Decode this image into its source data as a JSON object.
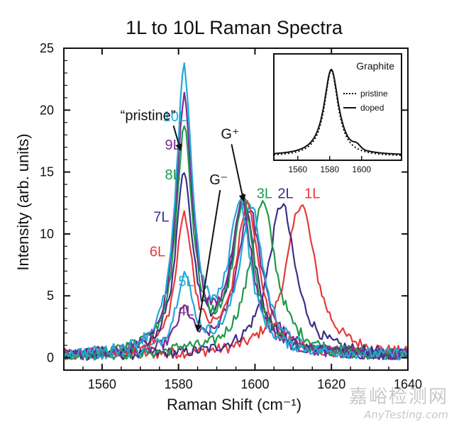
{
  "chart_data": {
    "type": "line",
    "title": "1L to 10L Raman Spectra",
    "xlabel": "Raman Shift (cm⁻¹)",
    "ylabel": "Intensity (arb. units)",
    "xlim": [
      1550,
      1640
    ],
    "ylim": [
      -1,
      25
    ],
    "xticks": [
      1560,
      1580,
      1600,
      1620,
      1640
    ],
    "yticks": [
      0,
      5,
      10,
      15,
      20,
      25
    ],
    "grid": false,
    "legend": "none",
    "series": [
      {
        "name": "1L",
        "color": "#e8393a",
        "peak": 1612,
        "height": 12.3,
        "width": 4.6,
        "gminus": 0
      },
      {
        "name": "2L",
        "color": "#3b2f8a",
        "peak": 1607,
        "height": 12.3,
        "width": 4.2,
        "gminus": 0
      },
      {
        "name": "3L",
        "color": "#1e9a4a",
        "peak": 1602,
        "height": 12.3,
        "width": 4.2,
        "gminus": 0.4
      },
      {
        "name": "4L",
        "color": "#7b2d8e",
        "peak": 1598.5,
        "height": 11.8,
        "width": 4.0,
        "gminus": 3.3
      },
      {
        "name": "5L",
        "color": "#21a9d9",
        "peak": 1599,
        "height": 12.0,
        "width": 3.8,
        "gminus": 6.2
      },
      {
        "name": "6L",
        "color": "#e8393a",
        "peak": 1598,
        "height": 12.0,
        "width": 3.6,
        "gminus": 11.0
      },
      {
        "name": "7L",
        "color": "#3b2f8a",
        "peak": 1597,
        "height": 12.5,
        "width": 3.6,
        "gminus": 14.5
      },
      {
        "name": "8L",
        "color": "#1e9a4a",
        "peak": 1597,
        "height": 12.0,
        "width": 3.4,
        "gminus": 18.1
      },
      {
        "name": "9L",
        "color": "#7b2d8e",
        "peak": 1596.5,
        "height": 12.0,
        "width": 3.4,
        "gminus": 20.4
      },
      {
        "name": "10L",
        "color": "#21a9d9",
        "peak": 1596,
        "height": 12.0,
        "width": 3.4,
        "gminus": 22.6
      }
    ],
    "gminus_position": 1581.5,
    "annotations": [
      {
        "text": "“pristine”",
        "x": 1572,
        "y": 19.2,
        "arrow_to": [
          1580.5,
          16.8
        ]
      },
      {
        "text": "G⁻",
        "x": 1590.5,
        "y": 14.0,
        "arrow_to": [
          1585,
          2.2
        ]
      },
      {
        "text": "G⁺",
        "x": 1593.5,
        "y": 17.7,
        "arrow_to": [
          1597,
          12.7
        ]
      }
    ],
    "inset": {
      "title": "Graphite",
      "xticks": [
        1560,
        1580,
        1600
      ],
      "xlim": [
        1545,
        1625
      ],
      "peak": 1581,
      "legend": [
        {
          "name": "pristine",
          "style": "dotted"
        },
        {
          "name": "doped",
          "style": "solid"
        }
      ]
    }
  },
  "watermark": {
    "cn": "嘉峪检测网",
    "en": "AnyTesting.com"
  }
}
